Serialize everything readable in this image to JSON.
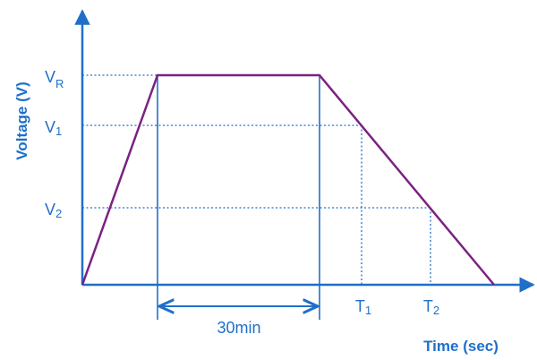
{
  "axes": {
    "ylabel": "Voltage (V)",
    "xlabel": "Time (sec)"
  },
  "levels": {
    "vr_main": "V",
    "vr_sub": "R",
    "v1_main": "V",
    "v1_sub": "1",
    "v2_main": "V",
    "v2_sub": "2"
  },
  "times": {
    "t1_main": "T",
    "t1_sub": "1",
    "t2_main": "T",
    "t2_sub": "2"
  },
  "hold_duration": "30min",
  "colors": {
    "axis": "#1f6fc9",
    "profile": "#7b2182",
    "guide": "#1f6fc9",
    "text": "#1f6fc9"
  }
}
